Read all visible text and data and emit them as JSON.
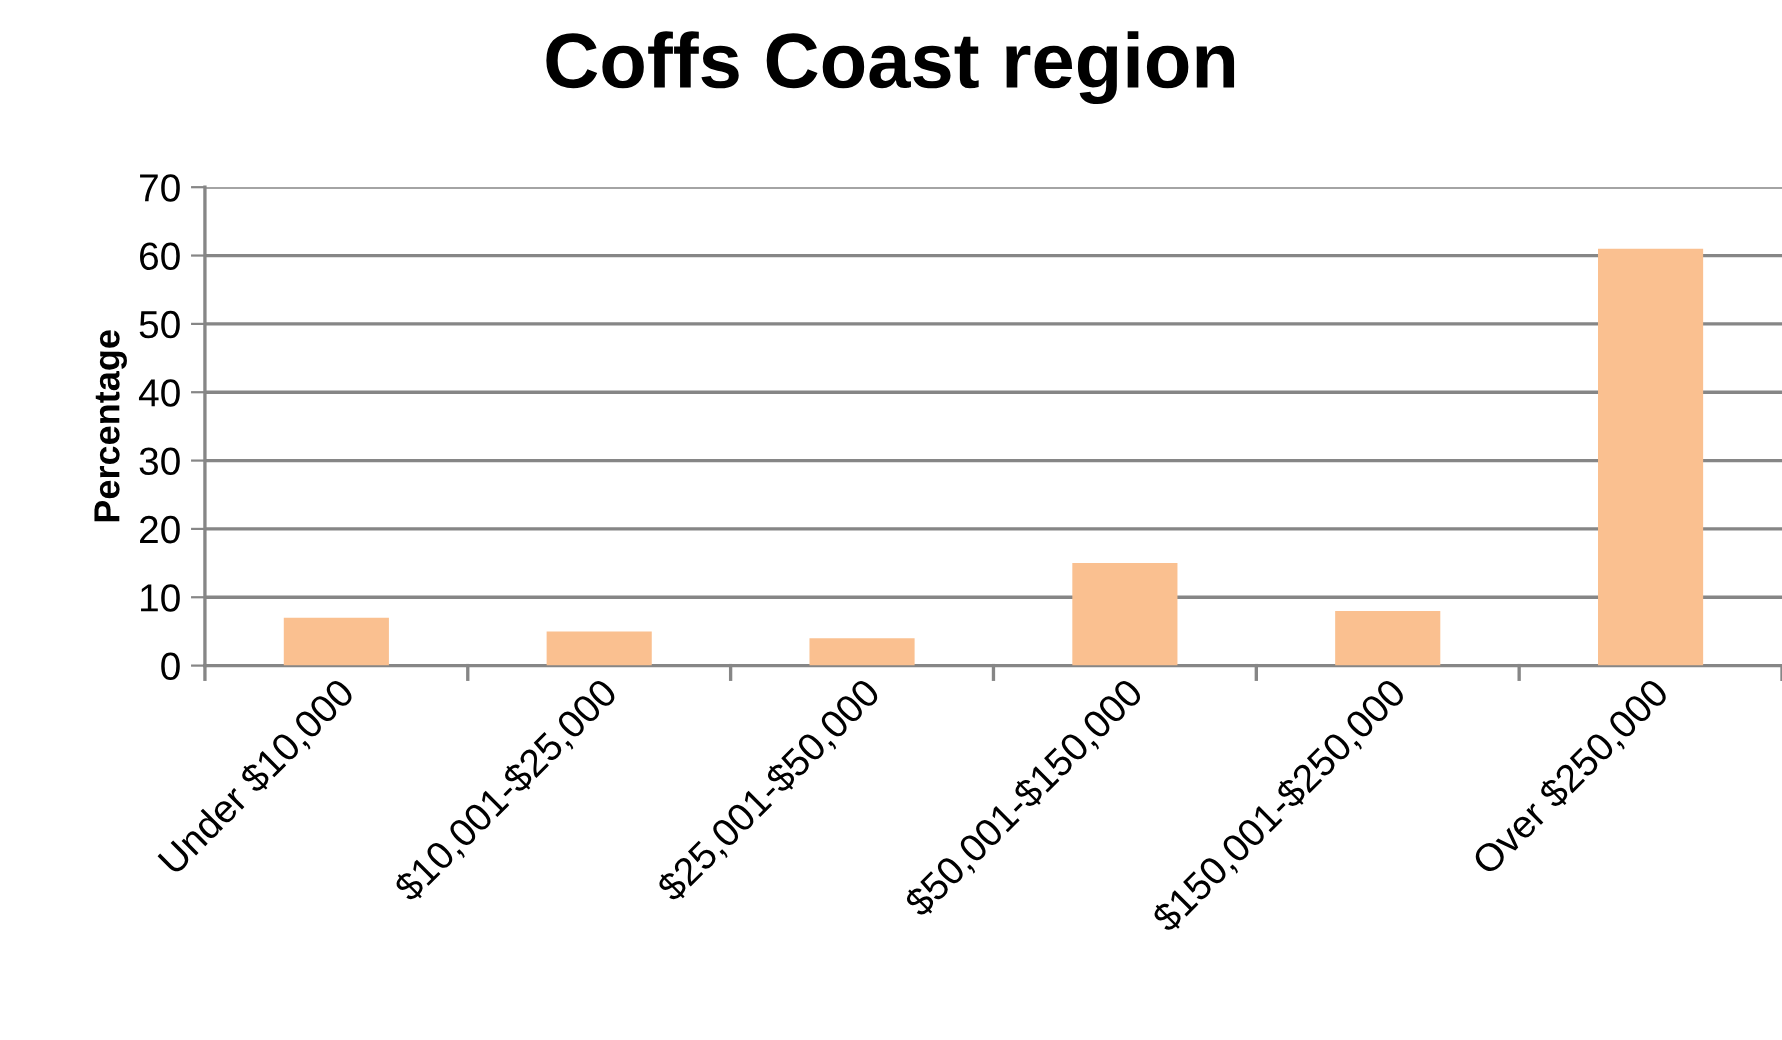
{
  "chart_data": {
    "type": "bar",
    "title": "Coffs Coast region",
    "ylabel": "Percentage",
    "categories": [
      "Under $10,000",
      "$10,001-$25,000",
      "$25,001-$50,000",
      "$50,001-$150,000",
      "$150,001-$250,000",
      "Over $250,000"
    ],
    "values": [
      7,
      5,
      4,
      15,
      8,
      61
    ],
    "color": "#fac090",
    "ylim": [
      0,
      70
    ],
    "yticks": [
      0,
      10,
      20,
      30,
      40,
      50,
      60,
      70
    ],
    "grid": "y"
  }
}
